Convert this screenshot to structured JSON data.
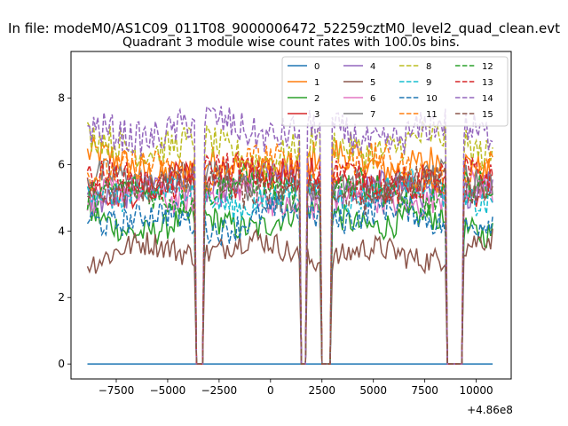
{
  "chart_data": {
    "type": "line",
    "suptitle": "In file: modeM0/AS1C09_011T08_9000006472_52259cztM0_level2_quad_clean.evt",
    "title": "Quadrant 3 module wise count rates with 100.0s bins.",
    "xlabel": "",
    "ylabel": "",
    "x_offset_label": "+4.86e8",
    "xlim": [
      -9700,
      11700
    ],
    "ylim": [
      -0.45,
      9.4
    ],
    "xticks": [
      -7500,
      -5000,
      -2500,
      0,
      2500,
      5000,
      7500,
      10000
    ],
    "xtick_labels": [
      "−7500",
      "−5000",
      "−2500",
      "0",
      "2500",
      "5000",
      "7500",
      "10000"
    ],
    "yticks": [
      0,
      2,
      4,
      6,
      8
    ],
    "ytick_labels": [
      "0",
      "2",
      "4",
      "6",
      "8"
    ],
    "x_range": [
      -8900,
      10800
    ],
    "bin_seconds": 100,
    "gaps": [
      {
        "start": -3650,
        "end": -3300
      },
      {
        "start": 1500,
        "end": 1700
      },
      {
        "start": 2500,
        "end": 2900
      },
      {
        "start": 8600,
        "end": 9300
      }
    ],
    "legend_position": "top-right",
    "legend_columns": 4,
    "series": [
      {
        "name": "0",
        "color": "#1f77b4",
        "dashed": false,
        "level": 0.0
      },
      {
        "name": "1",
        "color": "#ff7f0e",
        "dashed": false,
        "level": 6.0
      },
      {
        "name": "2",
        "color": "#2ca02c",
        "dashed": false,
        "level": 4.3
      },
      {
        "name": "3",
        "color": "#d62728",
        "dashed": false,
        "level": 5.5
      },
      {
        "name": "4",
        "color": "#9467bd",
        "dashed": false,
        "level": 5.3
      },
      {
        "name": "5",
        "color": "#8c564b",
        "dashed": false,
        "level": 3.4
      },
      {
        "name": "6",
        "color": "#e377c2",
        "dashed": false,
        "level": 5.0
      },
      {
        "name": "7",
        "color": "#7f7f7f",
        "dashed": false,
        "level": 5.4
      },
      {
        "name": "8",
        "color": "#bcbd22",
        "dashed": true,
        "level": 6.5
      },
      {
        "name": "9",
        "color": "#17becf",
        "dashed": true,
        "level": 5.1
      },
      {
        "name": "10",
        "color": "#1f77b4",
        "dashed": true,
        "level": 4.4
      },
      {
        "name": "11",
        "color": "#ff7f0e",
        "dashed": true,
        "level": 5.9
      },
      {
        "name": "12",
        "color": "#2ca02c",
        "dashed": true,
        "level": 5.2
      },
      {
        "name": "13",
        "color": "#d62728",
        "dashed": true,
        "level": 5.6
      },
      {
        "name": "14",
        "color": "#9467bd",
        "dashed": true,
        "level": 7.0
      },
      {
        "name": "15",
        "color": "#8c564b",
        "dashed": true,
        "level": 5.3
      }
    ]
  }
}
